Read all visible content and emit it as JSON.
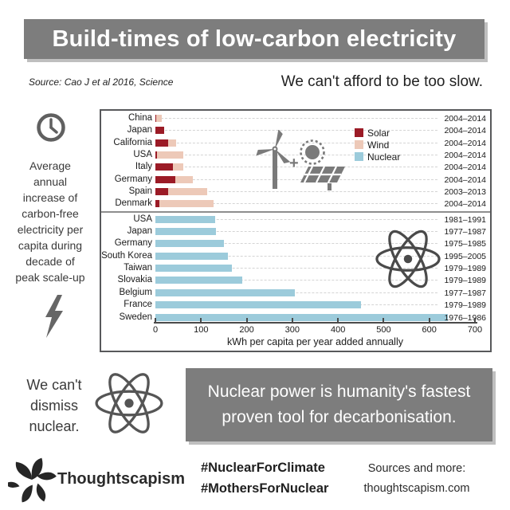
{
  "header": {
    "title": "Build-times of low-carbon electricity",
    "source": "Source: Cao J et al 2016, Science",
    "tagline": "We can't afford to be too slow."
  },
  "sidebar": {
    "caption_lines": [
      "Average",
      "annual",
      "increase of",
      "carbon-free",
      "electricity per",
      "capita during",
      "decade of",
      "peak scale-up"
    ]
  },
  "icons": {
    "left_top": "clock-icon",
    "left_bottom": "lightning-icon",
    "in_chart": [
      "wind-turbine-icon",
      "plus-sign",
      "sun-icon",
      "solar-panel-icon",
      "atom-icon"
    ],
    "plus_sign": "+",
    "bottom": "atom-icon",
    "logo": "flower-logo-icon"
  },
  "chart_data": {
    "type": "bar",
    "orientation": "horizontal",
    "title": "",
    "xlabel": "kWh per capita per year added annually",
    "ylabel": "",
    "xlim": [
      0,
      700
    ],
    "xticks": [
      0,
      100,
      200,
      300,
      400,
      500,
      600,
      700
    ],
    "grid": "dashed horizontal row guides",
    "legend_position": "upper right inside plot",
    "legend": [
      {
        "label": "Solar",
        "color": "#9b1b26"
      },
      {
        "label": "Wind",
        "color": "#edc9b8"
      },
      {
        "label": "Nuclear",
        "color": "#9ccbdb"
      }
    ],
    "rows": [
      {
        "label": "China",
        "group": "solar-wind",
        "solar": 2,
        "wind": 12,
        "nuclear": 0,
        "period": "2004–2014"
      },
      {
        "label": "Japan",
        "group": "solar-wind",
        "solar": 19,
        "wind": 0,
        "nuclear": 0,
        "period": "2004–2014"
      },
      {
        "label": "California",
        "group": "solar-wind",
        "solar": 28,
        "wind": 18,
        "nuclear": 0,
        "period": "2004–2014"
      },
      {
        "label": "USA",
        "group": "solar-wind",
        "solar": 4,
        "wind": 58,
        "nuclear": 0,
        "period": "2004–2014"
      },
      {
        "label": "Italy",
        "group": "solar-wind",
        "solar": 39,
        "wind": 23,
        "nuclear": 0,
        "period": "2004–2014"
      },
      {
        "label": "Germany",
        "group": "solar-wind",
        "solar": 44,
        "wind": 38,
        "nuclear": 0,
        "period": "2004–2014"
      },
      {
        "label": "Spain",
        "group": "solar-wind",
        "solar": 28,
        "wind": 85,
        "nuclear": 0,
        "period": "2003–2013"
      },
      {
        "label": "Denmark",
        "group": "solar-wind",
        "solar": 8,
        "wind": 119,
        "nuclear": 0,
        "period": "2004–2014"
      },
      {
        "label": "USA",
        "group": "nuclear",
        "solar": 0,
        "wind": 0,
        "nuclear": 130,
        "period": "1981–1991"
      },
      {
        "label": "Japan",
        "group": "nuclear",
        "solar": 0,
        "wind": 0,
        "nuclear": 133,
        "period": "1977–1987"
      },
      {
        "label": "Germany",
        "group": "nuclear",
        "solar": 0,
        "wind": 0,
        "nuclear": 150,
        "period": "1975–1985"
      },
      {
        "label": "South Korea",
        "group": "nuclear",
        "solar": 0,
        "wind": 0,
        "nuclear": 158,
        "period": "1995–2005"
      },
      {
        "label": "Taiwan",
        "group": "nuclear",
        "solar": 0,
        "wind": 0,
        "nuclear": 167,
        "period": "1979–1989"
      },
      {
        "label": "Slovakia",
        "group": "nuclear",
        "solar": 0,
        "wind": 0,
        "nuclear": 191,
        "period": "1979–1989"
      },
      {
        "label": "Belgium",
        "group": "nuclear",
        "solar": 0,
        "wind": 0,
        "nuclear": 305,
        "period": "1977–1987"
      },
      {
        "label": "France",
        "group": "nuclear",
        "solar": 0,
        "wind": 0,
        "nuclear": 451,
        "period": "1979–1989"
      },
      {
        "label": "Sweden",
        "group": "nuclear",
        "solar": 0,
        "wind": 0,
        "nuclear": 640,
        "period": "1976–1986"
      }
    ]
  },
  "quote_strip": {
    "dismiss_lines": [
      "We can't",
      "dismiss",
      "nuclear."
    ],
    "quote": "Nuclear power is humanity's fastest proven tool for decarbonisation."
  },
  "footer": {
    "brand": "Thoughtscapism",
    "hashtag1": "#NuclearForClimate",
    "hashtag2": "#MothersForNuclear",
    "sources_label": "Sources and more:",
    "website": "thoughtscapism.com"
  },
  "colors": {
    "banner_gray": "#7d7d7d",
    "solar": "#9b1b26",
    "wind": "#edc9b8",
    "nuclear": "#9ccbdb",
    "icon_gray": "#757575",
    "frame": "#58595b"
  }
}
